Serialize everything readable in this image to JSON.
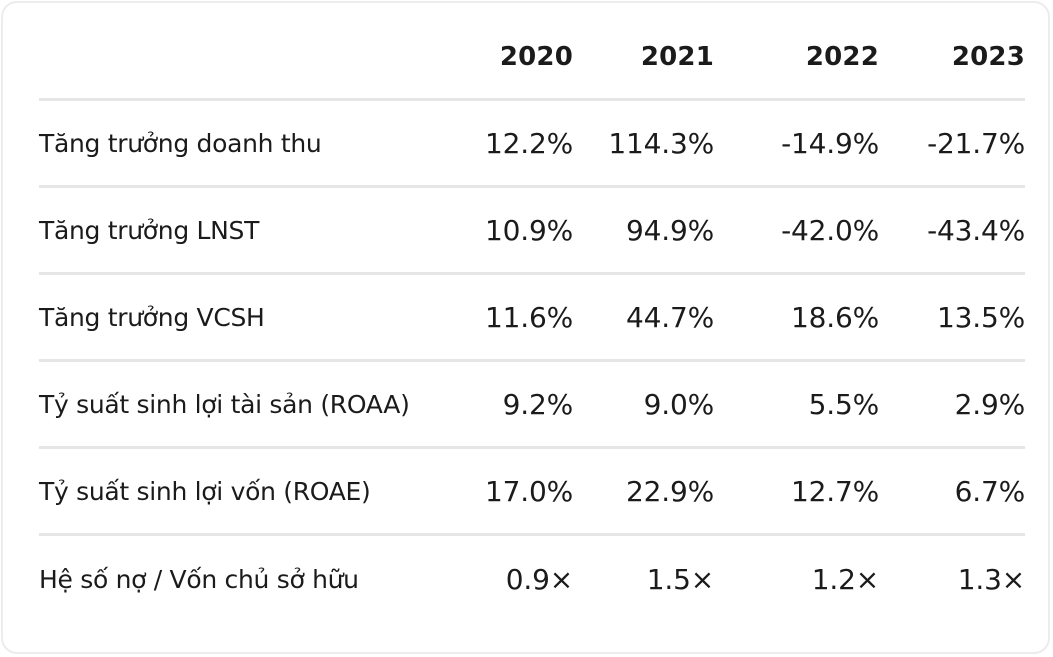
{
  "table": {
    "columns": [
      "2020",
      "2021",
      "2022",
      "2023"
    ],
    "rows": [
      {
        "label": "Tăng trưởng doanh thu",
        "values": [
          "12.2%",
          "114.3%",
          "-14.9%",
          "-21.7%"
        ]
      },
      {
        "label": "Tăng trưởng LNST",
        "values": [
          "10.9%",
          "94.9%",
          "-42.0%",
          "-43.4%"
        ]
      },
      {
        "label": "Tăng trưởng VCSH",
        "values": [
          "11.6%",
          "44.7%",
          "18.6%",
          "13.5%"
        ]
      },
      {
        "label": "Tỷ suất sinh lợi tài sản (ROAA)",
        "values": [
          "9.2%",
          "9.0%",
          "5.5%",
          "2.9%"
        ]
      },
      {
        "label": "Tỷ suất sinh lợi vốn (ROAE)",
        "values": [
          "17.0%",
          "22.9%",
          "12.7%",
          "6.7%"
        ]
      },
      {
        "label": "Hệ số nợ / Vốn chủ sở hữu",
        "values": [
          "0.9×",
          "1.5×",
          "1.2×",
          "1.3×"
        ]
      }
    ]
  }
}
